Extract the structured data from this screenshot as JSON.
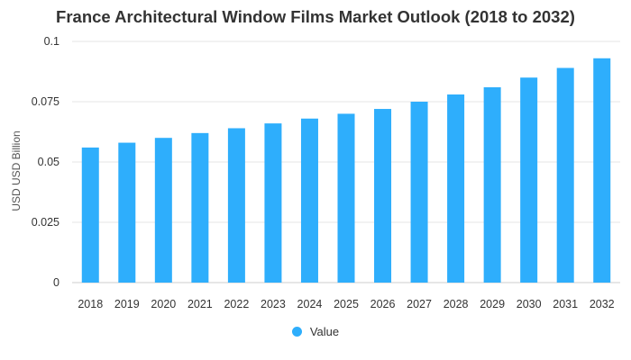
{
  "chart_data": {
    "type": "bar",
    "title": "France Architectural Window Films Market Outlook (2018 to 2032)",
    "xlabel": "",
    "ylabel": "USD USD Billion",
    "categories": [
      "2018",
      "2019",
      "2020",
      "2021",
      "2022",
      "2023",
      "2024",
      "2025",
      "2026",
      "2027",
      "2028",
      "2029",
      "2030",
      "2031",
      "2032"
    ],
    "series": [
      {
        "name": "Value",
        "values": [
          0.056,
          0.058,
          0.06,
          0.062,
          0.064,
          0.066,
          0.068,
          0.07,
          0.072,
          0.075,
          0.078,
          0.081,
          0.085,
          0.089,
          0.093
        ]
      }
    ],
    "ylim": [
      0,
      0.1
    ],
    "yticks": [
      "0",
      "0.025",
      "0.05",
      "0.075",
      "0.1"
    ],
    "grid": true,
    "legend_position": "bottom",
    "bar_color": "#2eaefc"
  }
}
